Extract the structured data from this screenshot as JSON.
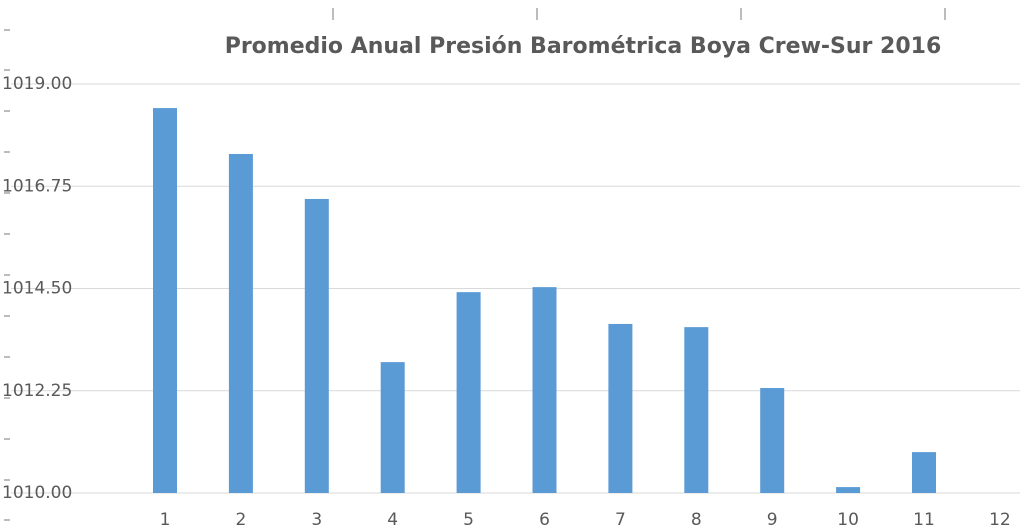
{
  "chart_data": {
    "type": "bar",
    "title": "Promedio Anual Presión Barométrica Boya Crew-Sur 2016",
    "categories": [
      "1",
      "2",
      "3",
      "4",
      "5",
      "6",
      "7",
      "8",
      "9",
      "10",
      "11",
      "12"
    ],
    "values": [
      1018.47,
      1017.46,
      1016.47,
      1012.88,
      1014.42,
      1014.53,
      1013.72,
      1013.65,
      1012.31,
      1010.13,
      1010.9,
      null
    ],
    "color": "#5b9bd5",
    "ylim": [
      1010,
      1019
    ],
    "yticks": [
      {
        "value": 1010,
        "label": "1010.00"
      },
      {
        "value": 1012.25,
        "label": "1012.25"
      },
      {
        "value": 1014.5,
        "label": "1014.50"
      },
      {
        "value": 1016.75,
        "label": "1016.75"
      },
      {
        "value": 1019,
        "label": "1019.00"
      }
    ],
    "grid": true
  }
}
